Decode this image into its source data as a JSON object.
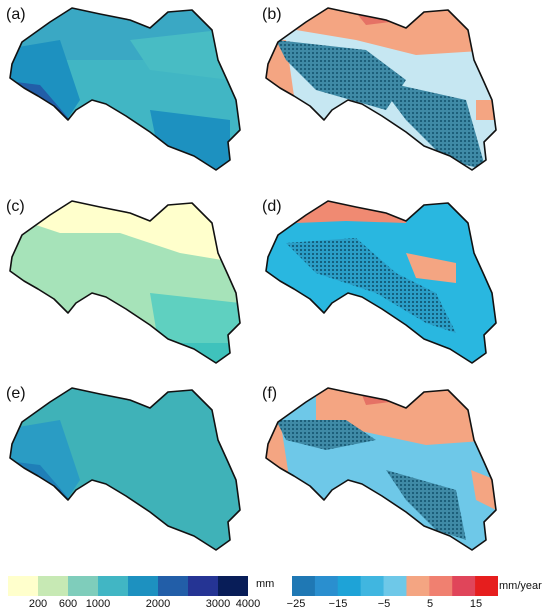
{
  "panels": [
    {
      "label": "(a)",
      "kind": "precip"
    },
    {
      "label": "(b)",
      "kind": "trend"
    },
    {
      "label": "(c)",
      "kind": "precip-dry"
    },
    {
      "label": "(d)",
      "kind": "trend-neg"
    },
    {
      "label": "(e)",
      "kind": "precip"
    },
    {
      "label": "(f)",
      "kind": "trend"
    }
  ],
  "legend_precip": {
    "unit": "mm",
    "ticks": [
      "200",
      "600",
      "1000",
      "2000",
      "3000",
      "4000"
    ],
    "colors": [
      "#ffffcc",
      "#c7e9b4",
      "#7fcdbb",
      "#41b6c4",
      "#1d91c0",
      "#225ea8",
      "#253494",
      "#081d58"
    ]
  },
  "legend_trend": {
    "unit": "mm/year",
    "ticks": [
      "−25",
      "−15",
      "−5",
      "5",
      "15"
    ],
    "colors": [
      "#1f78b4",
      "#2a8fcf",
      "#1ea3d7",
      "#40b6e0",
      "#6ec8e8",
      "#f4a582",
      "#f08070",
      "#e0455a",
      "#e61e1e"
    ]
  }
}
